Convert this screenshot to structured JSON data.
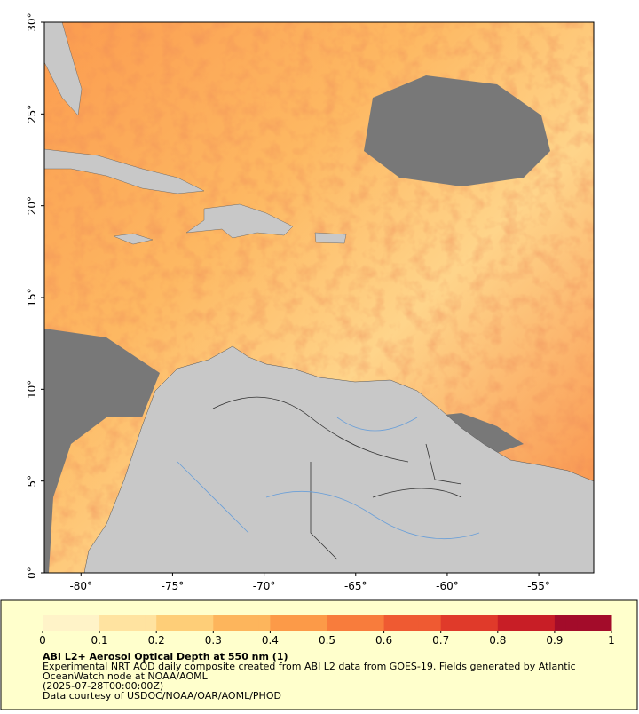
{
  "map": {
    "xlim": [
      -82,
      -52
    ],
    "ylim": [
      0,
      30
    ],
    "xticks": [
      {
        "value": -80,
        "label": "-80°"
      },
      {
        "value": -75,
        "label": "-75°"
      },
      {
        "value": -70,
        "label": "-70°"
      },
      {
        "value": -65,
        "label": "-65°"
      },
      {
        "value": -60,
        "label": "-60°"
      },
      {
        "value": -55,
        "label": "-55°"
      }
    ],
    "yticks": [
      {
        "value": 0,
        "label": "0°"
      },
      {
        "value": 5,
        "label": "5°"
      },
      {
        "value": 10,
        "label": "10°"
      },
      {
        "value": 15,
        "label": "15°"
      },
      {
        "value": 20,
        "label": "20°"
      },
      {
        "value": 25,
        "label": "25°"
      },
      {
        "value": 30,
        "label": "30°"
      }
    ]
  },
  "colorbar": {
    "range": [
      0,
      1
    ],
    "ticks": [
      0,
      0.1,
      0.2,
      0.3,
      0.4,
      0.5,
      0.6,
      0.7,
      0.8,
      0.9,
      1
    ],
    "colors": [
      "#fff3c8",
      "#ffe3a0",
      "#fece78",
      "#fdb55c",
      "#fc9a48",
      "#f87c3c",
      "#ef5a32",
      "#e03a2a",
      "#c81e26",
      "#a30c2a",
      "#800026"
    ]
  },
  "caption": {
    "title": "ABI L2+ Aerosol Optical Depth at 550 nm (1)",
    "lines": [
      "Experimental NRT AOD daily composite created from ABI L2 data from GOES-19. Fields generated by Atlantic",
      "OceanWatch node at NOAA/AOML",
      "(2025-07-28T00:00:00Z)",
      "Data courtesy of USDOC/NOAA/OAR/AOML/PHOD"
    ]
  }
}
